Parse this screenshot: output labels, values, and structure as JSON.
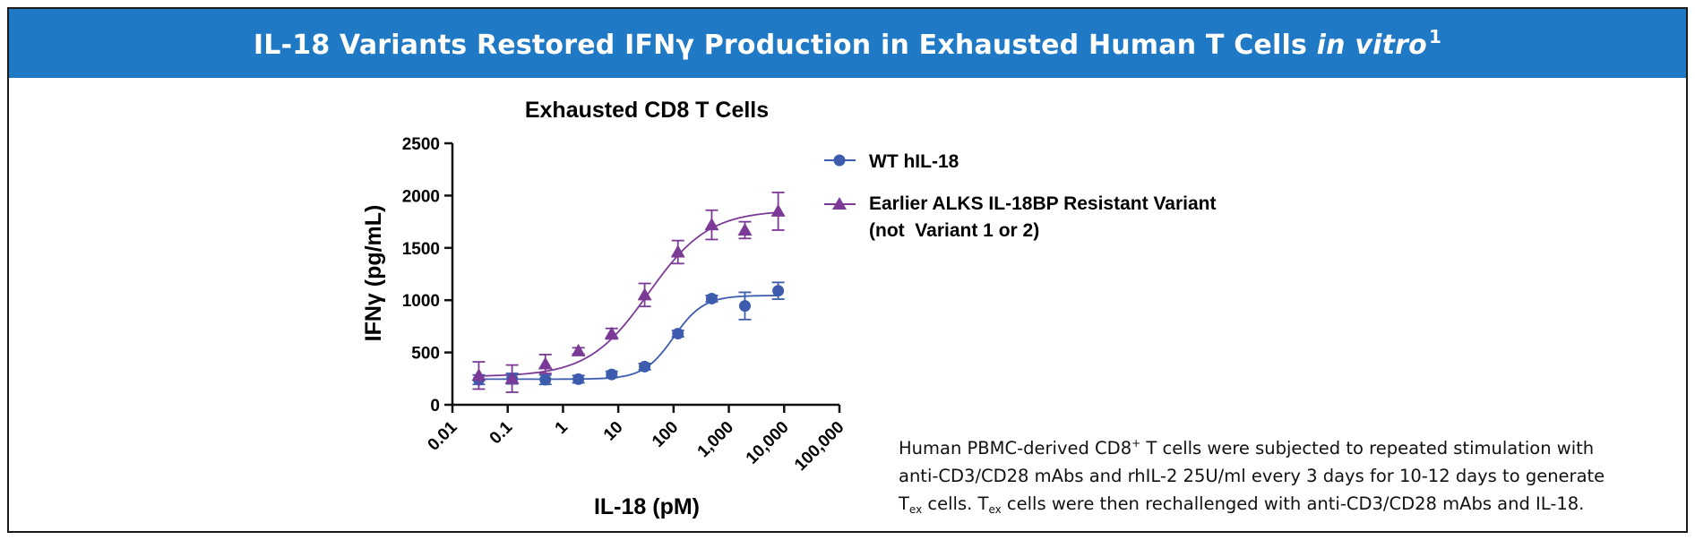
{
  "header": {
    "title_main": "IL-18 Variants Restored IFNγ Production in Exhausted Human T Cells ",
    "title_italic": "in vitro",
    "title_sup": "1"
  },
  "colors": {
    "banner": "#1f79c4",
    "wt_series": "#3d5cad",
    "variant_series": "#7b3a96"
  },
  "chart_data": {
    "type": "scatter",
    "title": "Exhausted CD8 T Cells",
    "xlabel": "IL-18 (pM)",
    "ylabel": "IFNγ (pg/mL)",
    "xscale": "log",
    "xlim": [
      0.01,
      100000
    ],
    "ylim": [
      0,
      2500
    ],
    "x_ticks": [
      0.01,
      0.1,
      1,
      10,
      100,
      1000,
      10000,
      100000
    ],
    "x_tick_labels": [
      "0.01",
      "0.1",
      "1",
      "10",
      "100",
      "1,000",
      "10,000",
      "100,000"
    ],
    "y_ticks": [
      0,
      500,
      1000,
      1500,
      2000,
      2500
    ],
    "y_tick_labels": [
      "0",
      "500",
      "1000",
      "1500",
      "2000",
      "2500"
    ],
    "legend_position": "right",
    "series": [
      {
        "name": "WT hIL-18",
        "marker": "circle",
        "color": "#3d5cad",
        "x": [
          0.03,
          0.12,
          0.48,
          1.9,
          7.6,
          30,
          120,
          490,
          1950,
          7800
        ],
        "y": [
          240,
          250,
          240,
          245,
          290,
          365,
          680,
          1015,
          945,
          1090
        ],
        "err": [
          45,
          50,
          45,
          35,
          30,
          30,
          30,
          30,
          130,
          80
        ],
        "fit": {
          "bottom": 245,
          "top": 1045,
          "ec50": 100,
          "hill": 1.6
        }
      },
      {
        "name": "Earlier ALKS IL-18BP Resistant Variant",
        "name_line2": "(not  Variant 1 or 2)",
        "marker": "triangle",
        "color": "#7b3a96",
        "x": [
          0.03,
          0.12,
          0.48,
          1.9,
          7.6,
          30,
          120,
          490,
          1950,
          7800
        ],
        "y": [
          280,
          250,
          390,
          515,
          680,
          1050,
          1460,
          1720,
          1670,
          1850
        ],
        "err": [
          130,
          130,
          90,
          30,
          50,
          110,
          110,
          140,
          80,
          180
        ],
        "fit": {
          "bottom": 270,
          "top": 1860,
          "ec50": 35,
          "hill": 0.8
        }
      }
    ]
  },
  "caption": {
    "line1": "Human PBMC-derived CD8",
    "line1_sup": "+",
    "line1_rest": " T cells were subjected to repeated stimulation with",
    "line2": "anti-CD3/CD28 mAbs and rhIL-2 25U/ml every 3 days for 10-12 days to generate",
    "line3_a": "T",
    "line3_sub": "ex",
    "line3_b": " cells. T",
    "line3_sub2": "ex",
    "line3_c": " cells were then rechallenged with anti-CD3/CD28 mAbs and IL-18."
  }
}
